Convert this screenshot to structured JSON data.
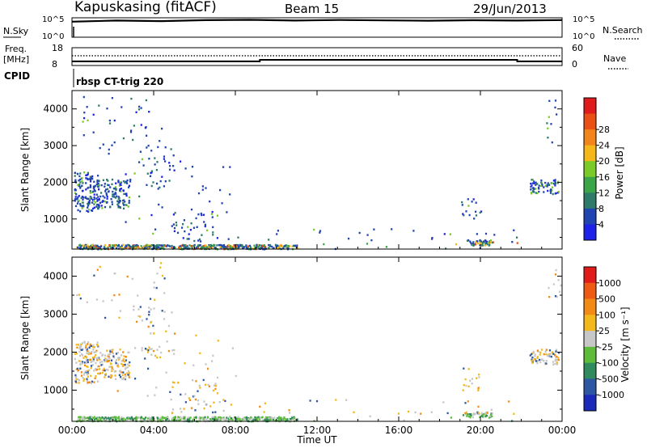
{
  "header": {
    "station": "Kapuskasing (fitACF)",
    "beam": "Beam 15",
    "date": "29/Jun/2013"
  },
  "chart_data": [
    {
      "type": "line",
      "panel": "noise",
      "left_label": "N.Sky",
      "right_label": "N.Search",
      "left_ticks": [
        "10^5",
        "10^0"
      ],
      "right_ticks": [
        "10^5",
        "10^0"
      ],
      "series": [
        {
          "name": "N.Sky",
          "style": "solid",
          "values": [
            10000,
            20000,
            14000,
            25000,
            30000,
            20000,
            28000,
            22000,
            18000,
            24000,
            20000,
            26000
          ]
        },
        {
          "name": "N.Search",
          "style": "dotted",
          "values": [
            12000,
            18000,
            16000,
            22000,
            26000,
            19000,
            24000,
            20000,
            17000,
            22000,
            21000,
            24000
          ]
        }
      ]
    },
    {
      "type": "line",
      "panel": "frequency",
      "left_label_1": "Freq.",
      "left_label_2": "[MHz]",
      "left_ticks": [
        "18",
        "8"
      ],
      "right_ticks": [
        "60",
        "0"
      ],
      "right_label": "Nave",
      "series": [
        {
          "name": "Freq.",
          "style": "solid",
          "x": [
            0,
            9.2,
            9.2,
            21.8,
            21.8,
            24
          ],
          "values": [
            10.3,
            10.3,
            11.2,
            11.2,
            10.3,
            10.3
          ]
        },
        {
          "name": "Nave",
          "style": "dotted",
          "x": [
            0,
            24
          ],
          "values": [
            33,
            33
          ]
        }
      ]
    },
    {
      "type": "text",
      "panel": "cpid",
      "label": "CPID",
      "value": "rbsp CT-trig 220"
    },
    {
      "type": "heatmap",
      "panel": "power",
      "ylabel": "Slant Range [km]",
      "ylim": [
        180,
        4500
      ],
      "yticks": [
        "1000",
        "2000",
        "3000",
        "4000"
      ],
      "xlim": [
        0,
        24
      ],
      "colorbar": {
        "label": "Power [dB]",
        "ticks": [
          "4",
          "8",
          "12",
          "16",
          "20",
          "24",
          "28"
        ],
        "colors": [
          "#1e22e8",
          "#2045b0",
          "#2e7b6a",
          "#3aa648",
          "#7acb28",
          "#f5b71a",
          "#f2861d",
          "#ea4f16",
          "#e01b1b"
        ]
      }
    },
    {
      "type": "heatmap",
      "panel": "velocity",
      "ylabel": "Slant Range [km]",
      "ylim": [
        180,
        4500
      ],
      "yticks": [
        "1000",
        "2000",
        "3000",
        "4000"
      ],
      "xlim": [
        0,
        24
      ],
      "colorbar": {
        "label": "Velocity [m s⁻¹]",
        "ticks": [
          "1000",
          "500",
          "100",
          "25",
          "-25",
          "-100",
          "-500",
          "-1000"
        ],
        "colors": [
          "#1b2ab8",
          "#2e57a3",
          "#2f8a5d",
          "#5dbd3a",
          "#c7c7c7",
          "#f2b81c",
          "#f28a16",
          "#ee5a13",
          "#e11a1a"
        ]
      },
      "xlabel": "Time UT",
      "xticks": [
        "00:00",
        "04:00",
        "08:00",
        "12:00",
        "16:00",
        "20:00",
        "00:00"
      ]
    }
  ]
}
